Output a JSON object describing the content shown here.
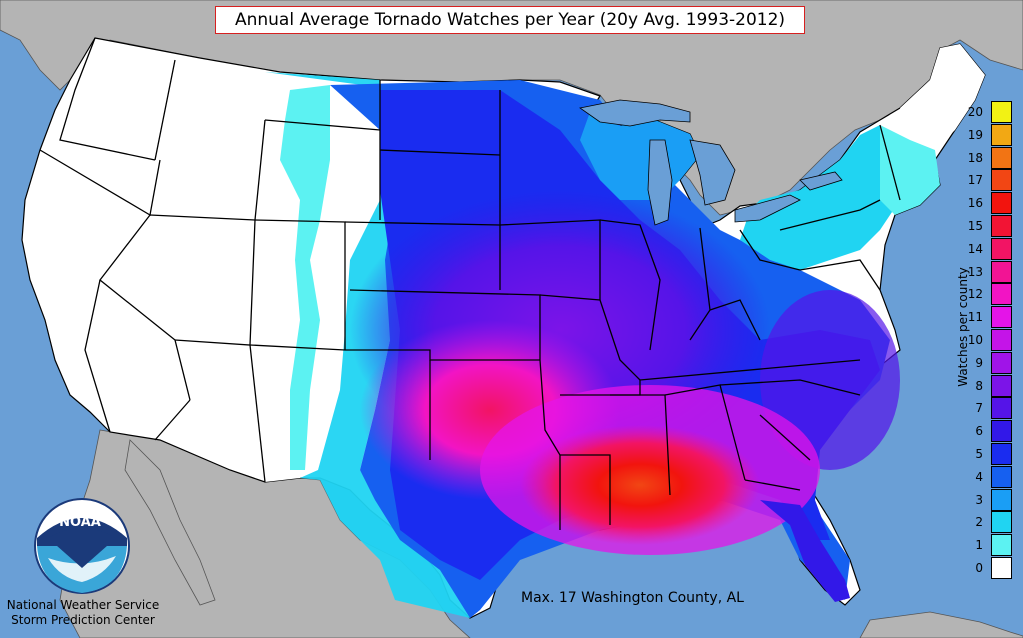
{
  "map": {
    "title": "Annual Average Tornado Watches per Year (20y Avg. 1993-2012)",
    "max_note": "Max. 17 Washington County, AL",
    "legend": {
      "title": "Watches per county",
      "levels": [
        {
          "value": "0",
          "color": "#ffffff"
        },
        {
          "value": "1",
          "color": "#5cf2f2"
        },
        {
          "value": "2",
          "color": "#20d4f2"
        },
        {
          "value": "3",
          "color": "#1a9ef5"
        },
        {
          "value": "4",
          "color": "#1660f0"
        },
        {
          "value": "5",
          "color": "#1a2cf0"
        },
        {
          "value": "6",
          "color": "#3218e8"
        },
        {
          "value": "7",
          "color": "#5514e8"
        },
        {
          "value": "8",
          "color": "#7c14e8"
        },
        {
          "value": "9",
          "color": "#a014e8"
        },
        {
          "value": "10",
          "color": "#c414e8"
        },
        {
          "value": "11",
          "color": "#e414e8"
        },
        {
          "value": "12",
          "color": "#f214c4"
        },
        {
          "value": "13",
          "color": "#f21494"
        },
        {
          "value": "14",
          "color": "#f21464"
        },
        {
          "value": "15",
          "color": "#f21434"
        },
        {
          "value": "16",
          "color": "#f2140e"
        },
        {
          "value": "17",
          "color": "#f24614"
        },
        {
          "value": "18",
          "color": "#f27414"
        },
        {
          "value": "19",
          "color": "#f2a814"
        },
        {
          "value": "20",
          "color": "#f2f214"
        }
      ]
    },
    "colors": {
      "ocean": "#6a9fd6",
      "land_outside": "#b4b4b4",
      "title_border": "#d62020"
    }
  },
  "branding": {
    "logo_text": "NOAA",
    "agency_line1": "National Weather Service",
    "agency_line2": "Storm Prediction Center"
  }
}
